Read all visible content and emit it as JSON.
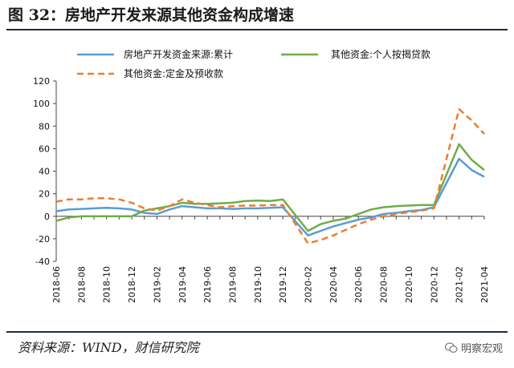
{
  "figure": {
    "title": "图 32：房地产开发来源其他资金构成增速",
    "source": "资料来源：WIND，财信研究院",
    "watermark": "明察宏观",
    "watermark_icon": "wechat-icon"
  },
  "chart_data": {
    "type": "line",
    "title": "",
    "xlabel": "",
    "ylabel": "",
    "ylim": [
      -40,
      120
    ],
    "yticks": [
      -40,
      -20,
      0,
      20,
      40,
      60,
      80,
      100,
      120
    ],
    "grid": false,
    "legend_position": "top",
    "x": [
      "2018-06",
      "2018-07",
      "2018-08",
      "2018-09",
      "2018-10",
      "2018-11",
      "2018-12",
      "2019-01",
      "2019-02",
      "2019-03",
      "2019-04",
      "2019-05",
      "2019-06",
      "2019-07",
      "2019-08",
      "2019-09",
      "2019-10",
      "2019-11",
      "2019-12",
      "2020-01",
      "2020-02",
      "2020-03",
      "2020-04",
      "2020-05",
      "2020-06",
      "2020-07",
      "2020-08",
      "2020-09",
      "2020-10",
      "2020-11",
      "2020-12",
      "2021-01",
      "2021-02",
      "2021-03",
      "2021-04"
    ],
    "xtick_labels": [
      "2018-06",
      "2018-08",
      "2018-10",
      "2018-12",
      "2019-02",
      "2019-04",
      "2019-06",
      "2019-08",
      "2019-10",
      "2019-12",
      "2020-02",
      "2020-04",
      "2020-06",
      "2020-08",
      "2020-10",
      "2020-12",
      "2021-02",
      "2021-04"
    ],
    "series": [
      {
        "name": "房地产开发资金来源:累计",
        "color": "#5b9bd5",
        "style": "solid",
        "values": [
          4.5,
          6,
          6.5,
          7,
          7.5,
          7,
          6,
          3,
          2,
          6,
          9,
          8,
          7,
          7,
          6.5,
          7,
          7,
          7.5,
          8,
          null,
          -17,
          -13,
          -9,
          -6,
          -3,
          -1,
          2,
          3,
          4.5,
          5.5,
          8,
          null,
          51,
          41,
          35
        ]
      },
      {
        "name": "其他资金:个人按揭贷款",
        "color": "#70ad47",
        "style": "solid",
        "values": [
          -4,
          -1,
          0,
          0,
          0,
          0,
          0,
          5,
          7,
          9,
          12,
          11,
          11,
          11.5,
          12,
          13.5,
          14,
          13.5,
          15,
          null,
          -13,
          -7,
          -4,
          -2,
          2,
          6,
          8,
          9,
          9.5,
          10,
          10,
          null,
          64,
          50,
          41
        ]
      },
      {
        "name": "其他资金:定金及预收款",
        "color": "#ed7d31",
        "style": "dashed",
        "values": [
          13,
          15,
          15,
          16,
          16,
          15,
          12,
          7,
          5,
          9,
          15,
          12,
          10,
          8,
          9,
          9.5,
          9.5,
          10,
          10,
          null,
          -24,
          -21,
          -17,
          -12,
          -7,
          -3,
          0,
          2,
          3.5,
          5,
          7,
          null,
          95,
          85,
          73
        ]
      }
    ]
  }
}
